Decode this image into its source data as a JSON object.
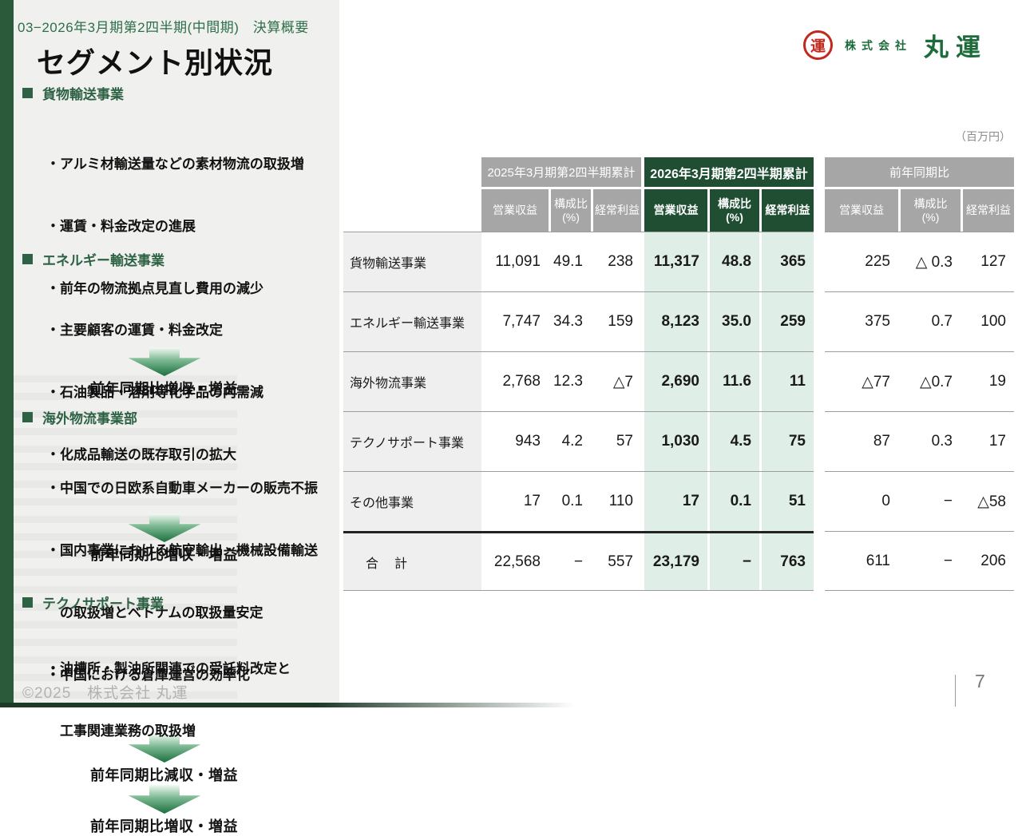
{
  "slide": {
    "eyebrow": "03−2026年3月期第2四半期(中間期)　決算概要",
    "title": "セグメント別状況",
    "unit_label": "（百万円）",
    "page_number": "7",
    "footer_copyright": "©2025　株式会社 丸運",
    "logo": {
      "mark_character": "運",
      "company_prefix": "株式会社",
      "company_name": "丸運"
    }
  },
  "sidebar": {
    "sections": [
      {
        "title": "貨物輸送事業",
        "bullets": [
          "・アルミ材輸送量などの素材物流の取扱増",
          "・運賃・料金改定の進展",
          "・前年の物流拠点見直し費用の減少"
        ],
        "result": "前年同期比増収・増益"
      },
      {
        "title": "エネルギー輸送事業",
        "bullets": [
          "・主要顧客の運賃・料金改定",
          "・石油製品・溶剤等化学品の内需減",
          "・化成品輸送の既存取引の拡大"
        ],
        "result": "前年同期比増収・増益"
      },
      {
        "title": "海外物流事業部",
        "bullets": [
          "・中国での日欧系自動車メーカーの販売不振",
          "・国内事業における航空輸出・機械設備輸送",
          "　の取扱増とベトナムの取扱量安定",
          "・中国における倉庫運営の効率化"
        ],
        "result": "前年同期比減収・増益"
      },
      {
        "title": "テクノサポート事業",
        "bullets": [
          "・油槽所・製油所関連での受託料改定と",
          "　工事関連業務の取扱増"
        ],
        "result": "前年同期比増収・増益"
      }
    ]
  },
  "table": {
    "groups": [
      {
        "label": "2025年3月期第2四半期累計",
        "theme": "gray"
      },
      {
        "label": "2026年3月期第2四半期累計",
        "theme": "green"
      },
      {
        "label": "前年同期比",
        "theme": "gray"
      }
    ],
    "sub_headers": [
      "営業収益",
      "構成比\n(%)",
      "経常利益"
    ],
    "rows": [
      {
        "label": "貨物輸送事業",
        "values": [
          "11,091",
          "49.1",
          "238",
          "11,317",
          "48.8",
          "365",
          "225",
          "△ 0.3",
          "127"
        ],
        "total": false
      },
      {
        "label": "エネルギー輸送事業",
        "values": [
          "7,747",
          "34.3",
          "159",
          "8,123",
          "35.0",
          "259",
          "375",
          "0.7",
          "100"
        ],
        "total": false
      },
      {
        "label": "海外物流事業",
        "values": [
          "2,768",
          "12.3",
          "△7",
          "2,690",
          "11.6",
          "11",
          "△77",
          "△0.7",
          "19"
        ],
        "total": false
      },
      {
        "label": "テクノサポート事業",
        "values": [
          "943",
          "4.2",
          "57",
          "1,030",
          "4.5",
          "75",
          "87",
          "0.3",
          "17"
        ],
        "total": false
      },
      {
        "label": "その他事業",
        "values": [
          "17",
          "0.1",
          "110",
          "17",
          "0.1",
          "51",
          "0",
          "−",
          "△58"
        ],
        "total": false
      },
      {
        "label": "合　計",
        "values": [
          "22,568",
          "−",
          "557",
          "23,179",
          "−",
          "763",
          "611",
          "−",
          "206"
        ],
        "total": true
      }
    ]
  },
  "colors": {
    "accent_green_dark": "#1f4e33",
    "header_gray": "#a6a6a6",
    "light_green": "#dfeee6",
    "brand_green": "#1d6b3a",
    "brand_red": "#c1281e",
    "sidebar_bar_green": "#2b5a3b"
  }
}
